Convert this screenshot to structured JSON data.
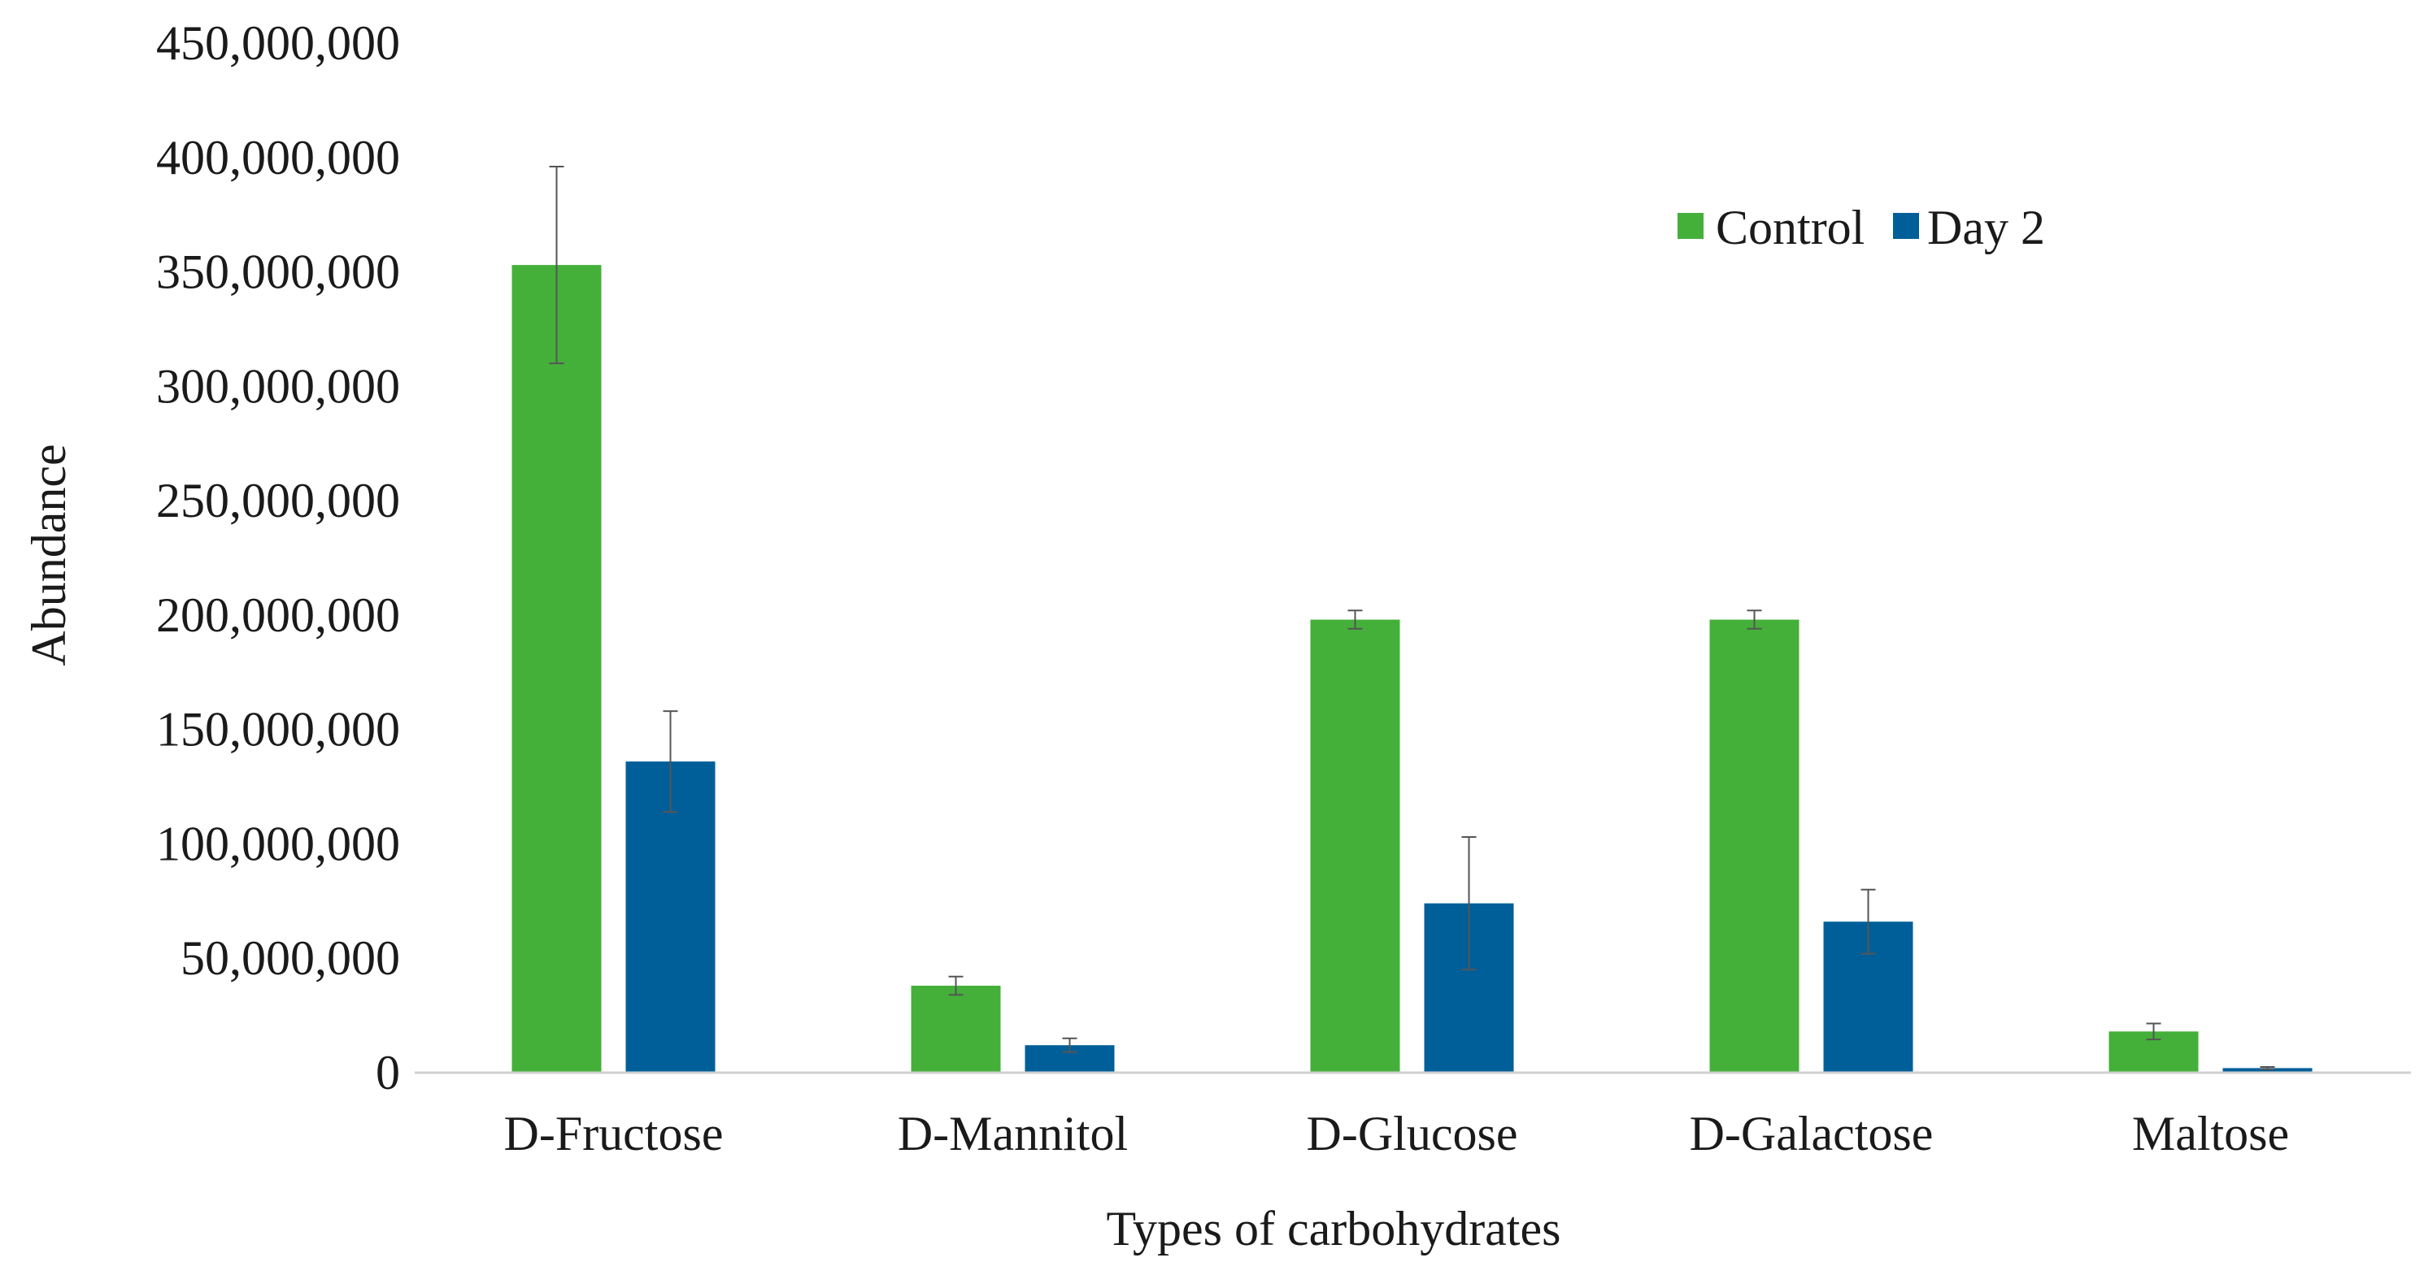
{
  "chart_data": {
    "type": "bar",
    "title": "",
    "xlabel": "Types of carbohydrates",
    "ylabel": "Abundance",
    "ylim": [
      0,
      450000000
    ],
    "ytick_values": [
      0,
      50000000,
      100000000,
      150000000,
      200000000,
      250000000,
      300000000,
      350000000,
      400000000,
      450000000
    ],
    "ytick_labels": [
      "0",
      "50,000,000",
      "100,000,000",
      "150,000,000",
      "200,000,000",
      "250,000,000",
      "300,000,000",
      "350,000,000",
      "400,000,000",
      "450,000,000"
    ],
    "categories": [
      "D-Fructose",
      "D-Mannitol",
      "D-Glucose",
      "D-Galactose",
      "Maltose"
    ],
    "legend_position": "top-right",
    "grid": false,
    "series": [
      {
        "name": "Control",
        "color": "#44b03a",
        "values": [
          353000000,
          38000000,
          198000000,
          198000000,
          18000000
        ],
        "errors": [
          43000000,
          4000000,
          4000000,
          4000000,
          3500000
        ]
      },
      {
        "name": "Day 2",
        "color": "#005f99",
        "values": [
          136000000,
          12000000,
          74000000,
          66000000,
          2000000
        ],
        "errors": [
          22000000,
          3000000,
          29000000,
          14000000,
          500000
        ]
      }
    ]
  }
}
